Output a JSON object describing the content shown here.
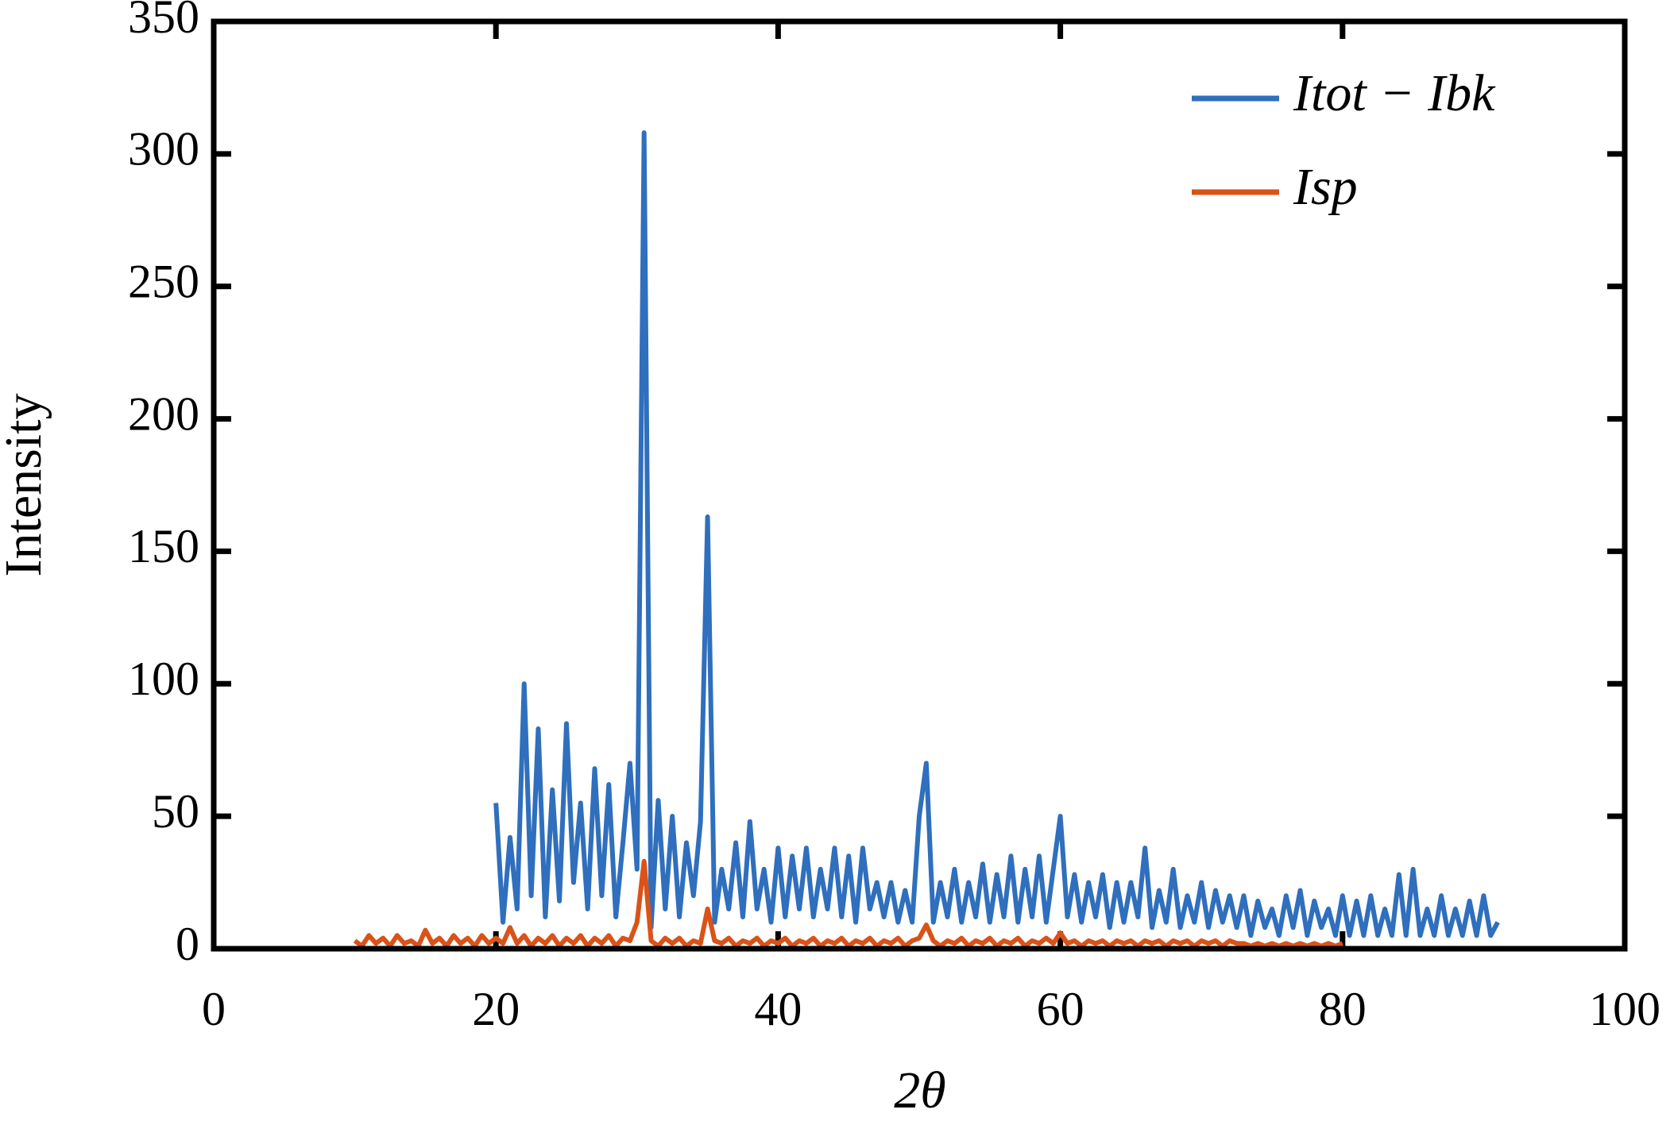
{
  "chart_data": {
    "type": "line",
    "x_label": "2θ",
    "y_label": "Intensity",
    "x": [
      10,
      10.5,
      11,
      11.5,
      12,
      12.5,
      13,
      13.5,
      14,
      14.5,
      15,
      15.5,
      16,
      16.5,
      17,
      17.5,
      18,
      18.5,
      19,
      19.5,
      20,
      20.5,
      21,
      21.5,
      22,
      22.5,
      23,
      23.5,
      24,
      24.5,
      25,
      25.5,
      26,
      26.5,
      27,
      27.5,
      28,
      28.5,
      29,
      29.5,
      30,
      30.5,
      31,
      31.5,
      32,
      32.5,
      33,
      33.5,
      34,
      34.5,
      35,
      35.5,
      36,
      36.5,
      37,
      37.5,
      38,
      38.5,
      39,
      39.5,
      40,
      40.5,
      41,
      41.5,
      42,
      42.5,
      43,
      43.5,
      44,
      44.5,
      45,
      45.5,
      46,
      46.5,
      47,
      47.5,
      48,
      48.5,
      49,
      49.5,
      50,
      50.5,
      51,
      51.5,
      52,
      52.5,
      53,
      53.5,
      54,
      54.5,
      55,
      55.5,
      56,
      56.5,
      57,
      57.5,
      58,
      58.5,
      59,
      59.5,
      60,
      60.5,
      61,
      61.5,
      62,
      62.5,
      63,
      63.5,
      64,
      64.5,
      65,
      65.5,
      66,
      66.5,
      67,
      67.5,
      68,
      68.5,
      69,
      69.5,
      70,
      70.5,
      71,
      71.5,
      72,
      72.5,
      73,
      73.5,
      74,
      74.5,
      75,
      75.5,
      76,
      76.5,
      77,
      77.5,
      78,
      78.5,
      79,
      79.5,
      80,
      80.5,
      81,
      81.5,
      82,
      82.5,
      83,
      83.5,
      84,
      84.5,
      85,
      85.5,
      86,
      86.5,
      87,
      87.5,
      88,
      88.5,
      89,
      89.5,
      90,
      90.5,
      91
    ],
    "series": [
      {
        "name": "Itot − Ibk",
        "color": "#2f6fbd",
        "values": [
          null,
          null,
          null,
          null,
          null,
          null,
          null,
          null,
          null,
          null,
          null,
          null,
          null,
          null,
          null,
          null,
          null,
          null,
          null,
          null,
          55,
          10,
          42,
          15,
          100,
          20,
          83,
          12,
          60,
          18,
          85,
          25,
          55,
          15,
          68,
          20,
          62,
          12,
          40,
          70,
          30,
          308,
          8,
          56,
          15,
          50,
          12,
          40,
          20,
          48,
          163,
          10,
          30,
          15,
          40,
          12,
          48,
          15,
          30,
          10,
          38,
          12,
          35,
          15,
          38,
          12,
          30,
          15,
          38,
          12,
          35,
          10,
          38,
          15,
          25,
          12,
          25,
          10,
          22,
          10,
          50,
          70,
          10,
          25,
          12,
          30,
          10,
          25,
          12,
          32,
          10,
          28,
          12,
          35,
          10,
          30,
          12,
          35,
          10,
          30,
          50,
          12,
          28,
          10,
          25,
          12,
          28,
          8,
          25,
          10,
          25,
          12,
          38,
          8,
          22,
          10,
          30,
          8,
          20,
          10,
          25,
          8,
          22,
          10,
          20,
          8,
          20,
          5,
          18,
          8,
          15,
          5,
          20,
          8,
          22,
          5,
          18,
          8,
          15,
          5,
          20,
          5,
          18,
          5,
          20,
          5,
          15,
          5,
          28,
          5,
          30,
          5,
          15,
          5,
          20,
          5,
          15,
          5,
          18,
          5,
          20,
          5,
          10
        ]
      },
      {
        "name": "Isp",
        "color": "#d95319",
        "values": [
          3,
          1,
          5,
          2,
          4,
          1,
          5,
          2,
          3,
          1,
          7,
          2,
          4,
          1,
          5,
          2,
          4,
          1,
          5,
          2,
          4,
          2,
          8,
          2,
          5,
          1,
          4,
          2,
          5,
          1,
          4,
          2,
          5,
          1,
          4,
          2,
          5,
          1,
          4,
          3,
          10,
          33,
          3,
          1,
          4,
          2,
          4,
          1,
          3,
          2,
          15,
          3,
          2,
          4,
          1,
          3,
          2,
          4,
          1,
          3,
          2,
          4,
          1,
          3,
          2,
          4,
          1,
          3,
          2,
          4,
          1,
          3,
          2,
          4,
          1,
          3,
          2,
          4,
          1,
          3,
          4,
          9,
          3,
          1,
          3,
          2,
          4,
          1,
          3,
          2,
          4,
          1,
          3,
          2,
          4,
          1,
          3,
          2,
          4,
          2,
          6,
          2,
          3,
          1,
          3,
          2,
          3,
          1,
          3,
          2,
          3,
          1,
          3,
          2,
          3,
          1,
          3,
          2,
          3,
          1,
          3,
          2,
          3,
          1,
          3,
          2,
          2,
          1,
          2,
          1,
          2,
          1,
          2,
          1,
          2,
          1,
          2,
          1,
          2,
          1,
          2,
          null,
          null,
          null,
          null,
          null,
          null,
          null,
          null,
          null,
          null,
          null,
          null,
          null,
          null,
          null,
          null,
          null,
          null,
          null,
          null,
          null,
          null
        ]
      }
    ],
    "xlim": [
      0,
      100
    ],
    "xticks": [
      0,
      20,
      40,
      60,
      80,
      100
    ],
    "ylim": [
      0,
      350
    ],
    "yticks": [
      0,
      50,
      100,
      150,
      200,
      250,
      300,
      350
    ],
    "legend": "upper right",
    "grid": false
  }
}
